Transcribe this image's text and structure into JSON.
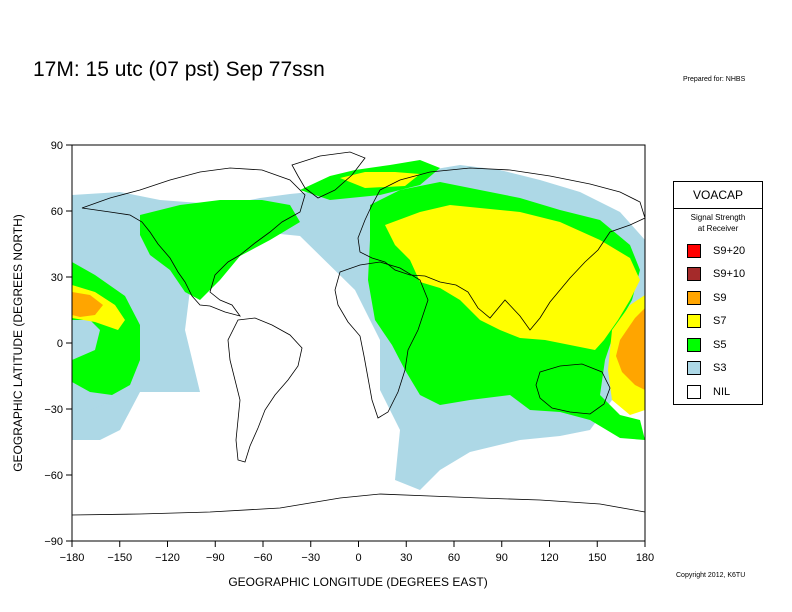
{
  "title": "17M:  15 utc (07 pst) Sep 77ssn",
  "prepared_for": "Prepared for: NHBS",
  "copyright": "Copyright 2012, K6TU",
  "axes": {
    "x_label": "GEOGRAPHIC LONGITUDE (DEGREES EAST)",
    "y_label": "GEOGRAPHIC LATITUDE (DEGREES NORTH)",
    "x_ticks": [
      "−180",
      "−150",
      "−120",
      "−90",
      "−60",
      "−30",
      "0",
      "30",
      "60",
      "90",
      "120",
      "150",
      "180"
    ],
    "y_ticks": [
      "90",
      "60",
      "30",
      "0",
      "−30",
      "−60",
      "−90"
    ],
    "x_range": [
      -180,
      180
    ],
    "y_range": [
      -90,
      90
    ]
  },
  "legend": {
    "title": "VOACAP",
    "subtitle": "Signal Strength\nat Receiver",
    "items": [
      {
        "label": "S9+20",
        "color": "#ff0000"
      },
      {
        "label": "S9+10",
        "color": "#a52a2a"
      },
      {
        "label": "S9",
        "color": "#ffa500"
      },
      {
        "label": "S7",
        "color": "#ffff00"
      },
      {
        "label": "S5",
        "color": "#00ff00"
      },
      {
        "label": "S3",
        "color": "#add8e6"
      },
      {
        "label": "NIL",
        "color": "#ffffff"
      }
    ]
  },
  "colors": {
    "S9": "#ffa500",
    "S7": "#ffff00",
    "S5": "#00ff00",
    "S3": "#add8e6",
    "land_outline": "#000000"
  }
}
